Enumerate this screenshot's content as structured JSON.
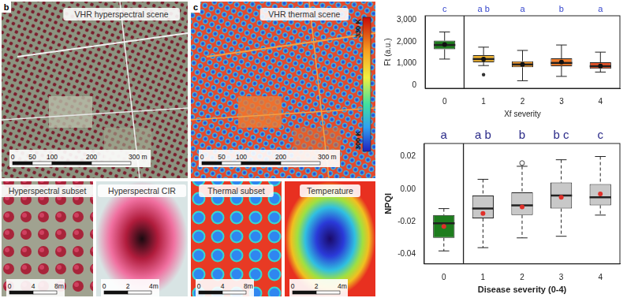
{
  "figure_panels": [
    {
      "label": "b",
      "title": "VHR hyperspectral scene",
      "scale_labels": [
        "0",
        "50",
        "100",
        "200",
        "300 m"
      ],
      "subsets": [
        {
          "title": "Hyperspectral subset",
          "scale_labels": [
            "0",
            "4",
            "8m"
          ]
        },
        {
          "title": "Hyperspectral CIR",
          "scale_labels": [
            "0",
            "2",
            "4m"
          ]
        }
      ]
    },
    {
      "label": "c",
      "title": "VHR thermal scene",
      "scale_labels": [
        "0",
        "50",
        "100",
        "200",
        "300 m"
      ],
      "color_bar": {
        "range": [
          300,
          330
        ],
        "ticks": [
          {
            "value": 330,
            "label": "330 K"
          },
          {
            "value": 300,
            "label": "300 K"
          }
        ]
      },
      "subsets": [
        {
          "title": "Thermal subset",
          "scale_labels": [
            "0",
            "4",
            "8m"
          ]
        },
        {
          "title": "Temperature",
          "scale_labels": [
            "0",
            "2",
            "4m"
          ]
        }
      ]
    }
  ],
  "chart_data": [
    {
      "type": "box",
      "xlabel": "Xf severity",
      "ylabel": "Ft (a.u.)",
      "categories": [
        "0",
        "1",
        "2",
        "3",
        "4"
      ],
      "ylim": [
        -150,
        3200
      ],
      "yticks": [
        0,
        {
          "value": 1000,
          "label": "1,000"
        },
        {
          "value": 2000,
          "label": "2,000"
        },
        {
          "value": 3000,
          "label": "3,000"
        }
      ],
      "grid": false,
      "tick_labels": true,
      "annotations": [
        "c",
        "a b",
        "a",
        "b",
        "a"
      ],
      "series": [
        {
          "type": "box",
          "line_style": "solid",
          "colors": [
            "#1e7d1e",
            "#f2b632",
            "#f39a2c",
            "#ef7b2b",
            "#e8542a"
          ],
          "values": [
            {
              "min": 1200,
              "q1": 1650,
              "median": 1850,
              "q3": 2050,
              "max": 2450
            },
            {
              "min": 900,
              "q1": 1050,
              "median": 1200,
              "q3": 1380,
              "max": 1750
            },
            {
              "min": 200,
              "q1": 820,
              "median": 950,
              "q3": 1100,
              "max": 1600
            },
            {
              "min": 400,
              "q1": 870,
              "median": 1020,
              "q3": 1230,
              "max": 1850
            },
            {
              "min": 600,
              "q1": 750,
              "median": 870,
              "q3": 1050,
              "max": 1520
            }
          ]
        },
        {
          "type": "scatter",
          "marker": "dot",
          "color": "#111111",
          "values": [
            1870,
            1200,
            950,
            1060,
            880
          ]
        },
        {
          "type": "scatter",
          "marker": "circle",
          "color": "#333333",
          "values": [
            [],
            [
              480
            ],
            [],
            [],
            []
          ]
        }
      ]
    },
    {
      "type": "box",
      "xlabel": "Disease severity (0-4)",
      "ylabel": "NPQI",
      "categories": [
        "0",
        "1",
        "2",
        "3",
        "4"
      ],
      "ylim": [
        -0.046,
        0.028
      ],
      "yticks": [
        -0.04,
        -0.02,
        {
          "value": 0,
          "label": "0.00"
        },
        0.02
      ],
      "grid": false,
      "tick_labels": true,
      "annotations": [
        "a",
        "a b",
        "b",
        "b c",
        "c"
      ],
      "series": [
        {
          "type": "box",
          "line_style": "dashed",
          "colors": [
            "#1e7d1e",
            "#c8c8c8",
            "#c8c8c8",
            "#c8c8c8",
            "#c8c8c8"
          ],
          "values": [
            {
              "min": -0.038,
              "q1": -0.03,
              "median": -0.021,
              "q3": -0.016,
              "max": -0.012
            },
            {
              "min": -0.036,
              "q1": -0.018,
              "median": -0.012,
              "q3": -0.004,
              "max": 0.006
            },
            {
              "min": -0.03,
              "q1": -0.016,
              "median": -0.01,
              "q3": -0.002,
              "max": 0.014
            },
            {
              "min": -0.029,
              "q1": -0.012,
              "median": -0.004,
              "q3": 0.004,
              "max": 0.018
            },
            {
              "min": -0.016,
              "q1": -0.01,
              "median": -0.005,
              "q3": 0.003,
              "max": 0.02
            }
          ]
        },
        {
          "type": "scatter",
          "marker": "dot",
          "color": "#e0302a",
          "values": [
            -0.023,
            -0.015,
            -0.011,
            -0.005,
            -0.003
          ]
        },
        {
          "type": "scatter",
          "marker": "circle-open",
          "color": "#444444",
          "values": [
            [],
            [],
            [
              0.016
            ],
            [],
            []
          ]
        }
      ]
    }
  ]
}
